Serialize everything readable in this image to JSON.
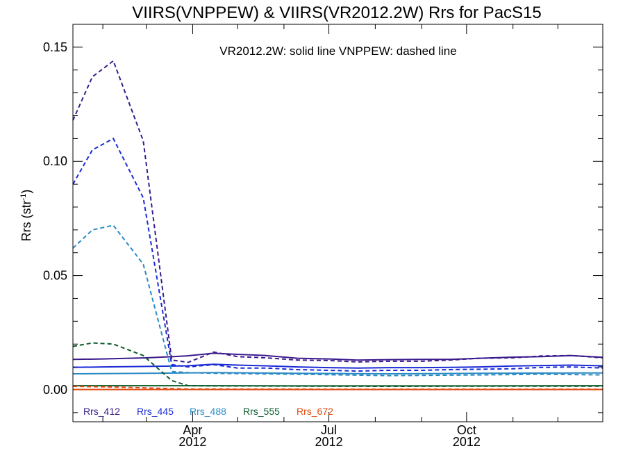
{
  "chart_data": {
    "type": "line",
    "title": "VIIRS(VNPPEW) & VIIRS(VR2012.2W)  Rrs for PacS15",
    "annotation": "VR2012.2W: solid line   VNPPEW: dashed line",
    "ylabel": "Rrs (str",
    "ylabel_sup": "-1",
    "ylabel_close": ")",
    "ylim": [
      -0.014,
      0.16
    ],
    "y_ticks": [
      0.0,
      0.05,
      0.1,
      0.15
    ],
    "y_tick_labels": [
      "0.00",
      "0.05",
      "0.10",
      "0.15"
    ],
    "xlim": [
      "2012-01-12",
      "2012-12-31"
    ],
    "x_ticks": [
      {
        "date": "2012-04-01",
        "month": "Apr",
        "year": "2012"
      },
      {
        "date": "2012-07-01",
        "month": "Jul",
        "year": "2012"
      },
      {
        "date": "2012-10-01",
        "month": "Oct",
        "year": "2012"
      }
    ],
    "x_minor_ticks": [
      "2012-02-01",
      "2012-03-01",
      "2012-05-01",
      "2012-06-01",
      "2012-08-01",
      "2012-09-01",
      "2012-11-01",
      "2012-12-01"
    ],
    "series": [
      {
        "name": "Rrs_412",
        "color": "#3a1a8c",
        "solid": {
          "x": [
            "2012-01-12",
            "2012-02-01",
            "2012-03-01",
            "2012-03-28",
            "2012-04-15",
            "2012-05-01",
            "2012-05-20",
            "2012-06-10",
            "2012-07-01",
            "2012-07-20",
            "2012-08-10",
            "2012-09-01",
            "2012-09-20",
            "2012-10-10",
            "2012-11-01",
            "2012-11-20",
            "2012-12-10",
            "2012-12-31"
          ],
          "y": [
            0.0133,
            0.0135,
            0.014,
            0.0148,
            0.016,
            0.0155,
            0.015,
            0.0138,
            0.0135,
            0.013,
            0.0132,
            0.0133,
            0.0133,
            0.0138,
            0.0143,
            0.0145,
            0.015,
            0.0142
          ]
        },
        "dashed": {
          "x": [
            "2012-01-12",
            "2012-01-25",
            "2012-02-08",
            "2012-02-28",
            "2012-03-18",
            "2012-03-29",
            "2012-04-15",
            "2012-05-01",
            "2012-05-20",
            "2012-06-10",
            "2012-07-01",
            "2012-07-20",
            "2012-08-10",
            "2012-09-01",
            "2012-09-20",
            "2012-10-10",
            "2012-11-01",
            "2012-11-20",
            "2012-12-10",
            "2012-12-31"
          ],
          "y": [
            0.118,
            0.137,
            0.144,
            0.109,
            0.013,
            0.012,
            0.0165,
            0.0145,
            0.014,
            0.013,
            0.0128,
            0.0122,
            0.0125,
            0.0125,
            0.013,
            0.0138,
            0.014,
            0.0148,
            0.015,
            0.014
          ]
        }
      },
      {
        "name": "Rrs_445",
        "color": "#1a2ad6",
        "solid": {
          "x": [
            "2012-01-12",
            "2012-02-01",
            "2012-03-01",
            "2012-03-28",
            "2012-04-15",
            "2012-05-01",
            "2012-05-20",
            "2012-06-10",
            "2012-07-01",
            "2012-07-20",
            "2012-08-10",
            "2012-09-01",
            "2012-09-20",
            "2012-10-10",
            "2012-11-01",
            "2012-11-20",
            "2012-12-10",
            "2012-12-31"
          ],
          "y": [
            0.0098,
            0.01,
            0.0102,
            0.0105,
            0.0112,
            0.0108,
            0.0105,
            0.01,
            0.0097,
            0.0095,
            0.0097,
            0.0097,
            0.0098,
            0.01,
            0.0104,
            0.0106,
            0.0108,
            0.0105
          ]
        },
        "dashed": {
          "x": [
            "2012-01-12",
            "2012-01-25",
            "2012-02-08",
            "2012-02-28",
            "2012-03-18",
            "2012-03-29",
            "2012-04-15",
            "2012-05-01",
            "2012-05-20",
            "2012-06-10",
            "2012-07-01",
            "2012-07-20",
            "2012-08-10",
            "2012-09-01",
            "2012-09-20",
            "2012-10-10",
            "2012-11-01",
            "2012-11-20",
            "2012-12-10",
            "2012-12-31"
          ],
          "y": [
            0.09,
            0.105,
            0.11,
            0.084,
            0.011,
            0.01,
            0.011,
            0.0095,
            0.0095,
            0.0088,
            0.0085,
            0.0082,
            0.0085,
            0.0085,
            0.0088,
            0.009,
            0.0092,
            0.0098,
            0.01,
            0.0095
          ]
        }
      },
      {
        "name": "Rrs_488",
        "color": "#2a8ac4",
        "solid": {
          "x": [
            "2012-01-12",
            "2012-03-01",
            "2012-04-15",
            "2012-06-10",
            "2012-08-10",
            "2012-10-10",
            "2012-12-31"
          ],
          "y": [
            0.007,
            0.0072,
            0.0075,
            0.0072,
            0.007,
            0.0072,
            0.0074
          ]
        },
        "dashed": {
          "x": [
            "2012-01-12",
            "2012-01-25",
            "2012-02-08",
            "2012-02-28",
            "2012-03-18",
            "2012-03-29",
            "2012-04-15",
            "2012-06-10",
            "2012-08-10",
            "2012-10-10",
            "2012-11-20",
            "2012-12-31"
          ],
          "y": [
            0.062,
            0.07,
            0.072,
            0.055,
            0.008,
            0.0075,
            0.0072,
            0.0068,
            0.0062,
            0.0065,
            0.0068,
            0.0065
          ]
        }
      },
      {
        "name": "Rrs_555",
        "color": "#0a5a2a",
        "solid": {
          "x": [
            "2012-01-12",
            "2012-03-01",
            "2012-04-15",
            "2012-06-10",
            "2012-08-10",
            "2012-10-10",
            "2012-12-31"
          ],
          "y": [
            0.0018,
            0.0018,
            0.0018,
            0.0017,
            0.0017,
            0.0017,
            0.0018
          ]
        },
        "dashed": {
          "x": [
            "2012-01-12",
            "2012-01-25",
            "2012-02-08",
            "2012-02-28",
            "2012-03-18",
            "2012-03-29",
            "2012-04-15",
            "2012-06-10",
            "2012-08-10",
            "2012-10-10",
            "2012-12-31"
          ],
          "y": [
            0.019,
            0.0205,
            0.02,
            0.015,
            0.004,
            0.0018,
            0.0017,
            0.0016,
            0.0015,
            0.0016,
            0.0016
          ]
        }
      },
      {
        "name": "Rrs_672",
        "color": "#e04a10",
        "solid": {
          "x": [
            "2012-01-12",
            "2012-04-15",
            "2012-08-10",
            "2012-12-31"
          ],
          "y": [
            0.0001,
            0.0001,
            0.0001,
            0.0001
          ]
        },
        "dashed": {
          "x": [
            "2012-01-12",
            "2012-02-08",
            "2012-03-29",
            "2012-08-10",
            "2012-12-31"
          ],
          "y": [
            0.0015,
            0.0012,
            0.0003,
            0.0002,
            0.0002
          ]
        }
      }
    ],
    "legend_placement": "bottom-left inside plot"
  }
}
